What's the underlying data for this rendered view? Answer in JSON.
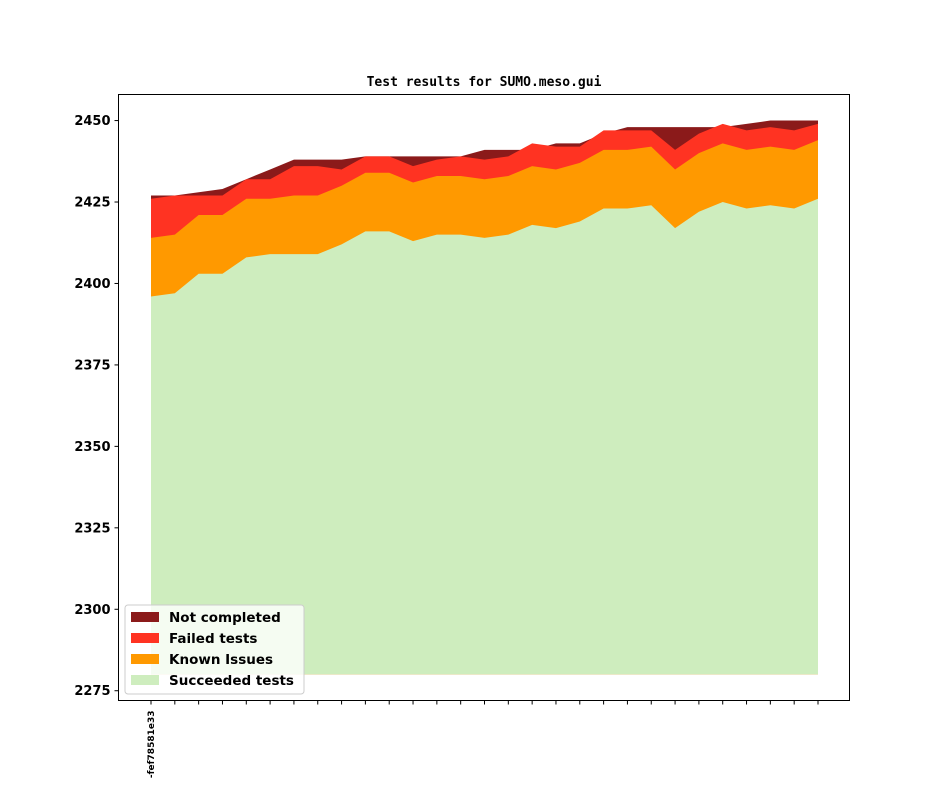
{
  "chart_data": {
    "type": "area",
    "title": "Test results for SUMO.meso.gui",
    "xlabel": "",
    "ylabel": "",
    "ylim": [
      2272,
      2458
    ],
    "ytick_values": [
      2275,
      2300,
      2325,
      2350,
      2375,
      2400,
      2425,
      2450
    ],
    "ytick_labels": [
      "2275",
      "2300",
      "2325",
      "2350",
      "2375",
      "2400",
      "2425",
      "2450"
    ],
    "baseline": 2280,
    "x_count": 29,
    "xtick_labels": [
      "-fef78581e33",
      "",
      "",
      "",
      "",
      "",
      "",
      "",
      "",
      "",
      "",
      "",
      "",
      "",
      "",
      "",
      "",
      "",
      "",
      "",
      "",
      "",
      "",
      "",
      "",
      "",
      "",
      "",
      ""
    ],
    "legend_position": "lower left",
    "stack_order": [
      "Succeeded tests",
      "Known Issues",
      "Failed tests",
      "Not completed"
    ],
    "series": [
      {
        "name": "Not completed",
        "color": "#8b1a1a",
        "top": [
          2427,
          2427,
          2428,
          2429,
          2432,
          2435,
          2438,
          2438,
          2438,
          2439,
          2439,
          2439,
          2439,
          2439,
          2441,
          2441,
          2441,
          2443,
          2443,
          2446,
          2448,
          2448,
          2448,
          2448,
          2448,
          2449,
          2450,
          2450,
          2450
        ]
      },
      {
        "name": "Failed tests",
        "color": "#ff3322",
        "top": [
          2426,
          2427,
          2427,
          2427,
          2432,
          2432,
          2436,
          2436,
          2435,
          2439,
          2439,
          2436,
          2438,
          2439,
          2438,
          2439,
          2443,
          2442,
          2442,
          2447,
          2447,
          2447,
          2441,
          2446,
          2449,
          2447,
          2448,
          2447,
          2449
        ]
      },
      {
        "name": "Known Issues",
        "color": "#ff9900",
        "top": [
          2414,
          2415,
          2421,
          2421,
          2426,
          2426,
          2427,
          2427,
          2430,
          2434,
          2434,
          2431,
          2433,
          2433,
          2432,
          2433,
          2436,
          2435,
          2437,
          2441,
          2441,
          2442,
          2435,
          2440,
          2443,
          2441,
          2442,
          2441,
          2444
        ]
      },
      {
        "name": "Succeeded tests",
        "color": "#ceedbe",
        "top": [
          2396,
          2397,
          2403,
          2403,
          2408,
          2409,
          2409,
          2409,
          2412,
          2416,
          2416,
          2413,
          2415,
          2415,
          2414,
          2415,
          2418,
          2417,
          2419,
          2423,
          2423,
          2424,
          2417,
          2422,
          2425,
          2423,
          2424,
          2423,
          2426
        ]
      }
    ]
  }
}
